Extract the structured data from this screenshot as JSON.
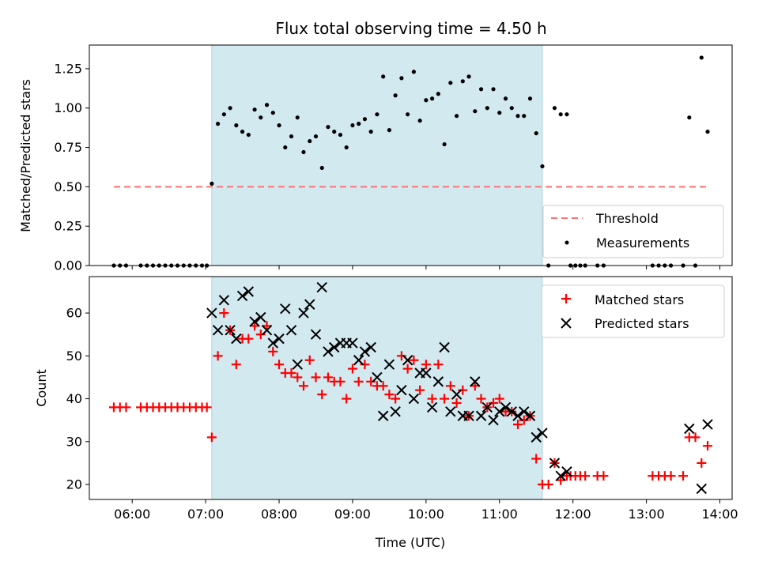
{
  "title": "Flux total observing time = 4.50 h",
  "xlabel": "Time (UTC)",
  "x_ticks": [
    "06:00",
    "07:00",
    "08:00",
    "09:00",
    "10:00",
    "11:00",
    "12:00",
    "13:00",
    "14:00"
  ],
  "colors": {
    "threshold": "#ff7070",
    "measurement": "#000000",
    "matched": "#ff0000",
    "predicted": "#000000",
    "shade": "#d3e9f0",
    "shade_edge": "#a9d3df"
  },
  "chart_data": [
    {
      "type": "scatter",
      "name": "top",
      "ylabel": "Matched/Predicted stars",
      "ylim": [
        0,
        1.4
      ],
      "y_ticks": [
        "0.00",
        "0.25",
        "0.50",
        "0.75",
        "1.00",
        "1.25"
      ],
      "x_range": [
        "05:25",
        "14:10"
      ],
      "shaded_interval": [
        "07:05",
        "11:35"
      ],
      "threshold": {
        "name": "Threshold",
        "y": 0.5,
        "x": [
          "05:45",
          "13:50"
        ]
      },
      "legend": {
        "position": "lower right",
        "entries": [
          "Threshold",
          "Measurements"
        ]
      },
      "series": [
        {
          "name": "Measurements",
          "marker": "dot",
          "points": [
            [
              "05:45",
              0
            ],
            [
              "05:50",
              0
            ],
            [
              "05:55",
              0
            ],
            [
              "06:07",
              0
            ],
            [
              "06:12",
              0
            ],
            [
              "06:17",
              0
            ],
            [
              "06:22",
              0
            ],
            [
              "06:27",
              0
            ],
            [
              "06:32",
              0
            ],
            [
              "06:37",
              0
            ],
            [
              "06:42",
              0
            ],
            [
              "06:47",
              0
            ],
            [
              "06:52",
              0
            ],
            [
              "06:57",
              0
            ],
            [
              "07:01",
              0
            ],
            [
              "07:05",
              0.52
            ],
            [
              "07:10",
              0.9
            ],
            [
              "07:15",
              0.96
            ],
            [
              "07:20",
              1.0
            ],
            [
              "07:25",
              0.89
            ],
            [
              "07:30",
              0.85
            ],
            [
              "07:35",
              0.83
            ],
            [
              "07:40",
              0.99
            ],
            [
              "07:45",
              0.94
            ],
            [
              "07:50",
              1.02
            ],
            [
              "07:55",
              0.97
            ],
            [
              "08:00",
              0.89
            ],
            [
              "08:05",
              0.75
            ],
            [
              "08:10",
              0.82
            ],
            [
              "08:15",
              0.94
            ],
            [
              "08:20",
              0.72
            ],
            [
              "08:25",
              0.79
            ],
            [
              "08:30",
              0.82
            ],
            [
              "08:35",
              0.62
            ],
            [
              "08:40",
              0.88
            ],
            [
              "08:45",
              0.85
            ],
            [
              "08:50",
              0.83
            ],
            [
              "08:55",
              0.75
            ],
            [
              "09:00",
              0.89
            ],
            [
              "09:05",
              0.9
            ],
            [
              "09:10",
              0.93
            ],
            [
              "09:15",
              0.85
            ],
            [
              "09:20",
              0.96
            ],
            [
              "09:25",
              1.2
            ],
            [
              "09:30",
              0.86
            ],
            [
              "09:35",
              1.08
            ],
            [
              "09:40",
              1.19
            ],
            [
              "09:45",
              0.96
            ],
            [
              "09:50",
              1.23
            ],
            [
              "09:55",
              0.92
            ],
            [
              "10:00",
              1.05
            ],
            [
              "10:05",
              1.06
            ],
            [
              "10:10",
              1.09
            ],
            [
              "10:15",
              0.77
            ],
            [
              "10:20",
              1.16
            ],
            [
              "10:25",
              0.95
            ],
            [
              "10:30",
              1.17
            ],
            [
              "10:35",
              1.2
            ],
            [
              "10:40",
              0.98
            ],
            [
              "10:45",
              1.12
            ],
            [
              "10:50",
              1.0
            ],
            [
              "10:55",
              1.12
            ],
            [
              "11:00",
              0.97
            ],
            [
              "11:05",
              1.06
            ],
            [
              "11:10",
              1.0
            ],
            [
              "11:15",
              0.95
            ],
            [
              "11:20",
              0.95
            ],
            [
              "11:25",
              1.06
            ],
            [
              "11:30",
              0.84
            ],
            [
              "11:35",
              0.63
            ],
            [
              "11:40",
              0
            ],
            [
              "11:45",
              1.0
            ],
            [
              "11:50",
              0.96
            ],
            [
              "11:55",
              0.96
            ],
            [
              "11:58",
              0
            ],
            [
              "12:02",
              0
            ],
            [
              "12:06",
              0
            ],
            [
              "12:10",
              0
            ],
            [
              "12:20",
              0
            ],
            [
              "12:25",
              0
            ],
            [
              "13:05",
              0
            ],
            [
              "13:10",
              0
            ],
            [
              "13:15",
              0
            ],
            [
              "13:20",
              0
            ],
            [
              "13:30",
              0
            ],
            [
              "13:35",
              0.94
            ],
            [
              "13:40",
              0
            ],
            [
              "13:45",
              1.32
            ],
            [
              "13:50",
              0.85
            ]
          ]
        }
      ]
    },
    {
      "type": "scatter",
      "name": "bottom",
      "ylabel": "Count",
      "ylim": [
        16.5,
        68.5
      ],
      "y_ticks": [
        "20",
        "30",
        "40",
        "50",
        "60"
      ],
      "x_range": [
        "05:25",
        "14:10"
      ],
      "shaded_interval": [
        "07:05",
        "11:35"
      ],
      "legend": {
        "position": "upper right",
        "entries": [
          "Matched stars",
          "Predicted stars"
        ]
      },
      "series": [
        {
          "name": "Matched stars",
          "marker": "plus",
          "points": [
            [
              "05:45",
              38
            ],
            [
              "05:50",
              38
            ],
            [
              "05:55",
              38
            ],
            [
              "06:07",
              38
            ],
            [
              "06:12",
              38
            ],
            [
              "06:17",
              38
            ],
            [
              "06:22",
              38
            ],
            [
              "06:27",
              38
            ],
            [
              "06:32",
              38
            ],
            [
              "06:37",
              38
            ],
            [
              "06:42",
              38
            ],
            [
              "06:47",
              38
            ],
            [
              "06:52",
              38
            ],
            [
              "06:57",
              38
            ],
            [
              "07:01",
              38
            ],
            [
              "07:05",
              31
            ],
            [
              "07:10",
              50
            ],
            [
              "07:15",
              60
            ],
            [
              "07:20",
              56
            ],
            [
              "07:25",
              48
            ],
            [
              "07:30",
              54
            ],
            [
              "07:35",
              54
            ],
            [
              "07:40",
              57
            ],
            [
              "07:45",
              55
            ],
            [
              "07:50",
              57
            ],
            [
              "07:55",
              51
            ],
            [
              "08:00",
              48
            ],
            [
              "08:05",
              46
            ],
            [
              "08:10",
              46
            ],
            [
              "08:15",
              45
            ],
            [
              "08:20",
              43
            ],
            [
              "08:25",
              49
            ],
            [
              "08:30",
              45
            ],
            [
              "08:35",
              41
            ],
            [
              "08:40",
              45
            ],
            [
              "08:45",
              44
            ],
            [
              "08:50",
              44
            ],
            [
              "08:55",
              40
            ],
            [
              "09:00",
              47
            ],
            [
              "09:05",
              44
            ],
            [
              "09:10",
              48
            ],
            [
              "09:15",
              44
            ],
            [
              "09:20",
              43
            ],
            [
              "09:25",
              43
            ],
            [
              "09:30",
              41
            ],
            [
              "09:35",
              40
            ],
            [
              "09:40",
              50
            ],
            [
              "09:45",
              47
            ],
            [
              "09:50",
              49
            ],
            [
              "09:55",
              42
            ],
            [
              "10:00",
              48
            ],
            [
              "10:05",
              40
            ],
            [
              "10:10",
              48
            ],
            [
              "10:15",
              40
            ],
            [
              "10:20",
              43
            ],
            [
              "10:25",
              39
            ],
            [
              "10:30",
              42
            ],
            [
              "10:35",
              36
            ],
            [
              "10:40",
              43
            ],
            [
              "10:45",
              40
            ],
            [
              "10:50",
              38
            ],
            [
              "10:55",
              39
            ],
            [
              "11:00",
              40
            ],
            [
              "11:05",
              37
            ],
            [
              "11:10",
              37
            ],
            [
              "11:15",
              34
            ],
            [
              "11:20",
              35
            ],
            [
              "11:25",
              36
            ],
            [
              "11:30",
              26
            ],
            [
              "11:35",
              20
            ],
            [
              "11:40",
              20
            ],
            [
              "11:45",
              25
            ],
            [
              "11:50",
              21
            ],
            [
              "11:55",
              22
            ],
            [
              "11:58",
              22
            ],
            [
              "12:02",
              22
            ],
            [
              "12:06",
              22
            ],
            [
              "12:10",
              22
            ],
            [
              "12:20",
              22
            ],
            [
              "12:25",
              22
            ],
            [
              "13:05",
              22
            ],
            [
              "13:10",
              22
            ],
            [
              "13:15",
              22
            ],
            [
              "13:20",
              22
            ],
            [
              "13:30",
              22
            ],
            [
              "13:35",
              31
            ],
            [
              "13:40",
              31
            ],
            [
              "13:45",
              25
            ],
            [
              "13:50",
              29
            ]
          ]
        },
        {
          "name": "Predicted stars",
          "marker": "x",
          "points": [
            [
              "07:05",
              60
            ],
            [
              "07:10",
              56
            ],
            [
              "07:15",
              63
            ],
            [
              "07:20",
              56
            ],
            [
              "07:25",
              54
            ],
            [
              "07:30",
              64
            ],
            [
              "07:35",
              65
            ],
            [
              "07:40",
              58
            ],
            [
              "07:45",
              59
            ],
            [
              "07:50",
              56
            ],
            [
              "07:55",
              53
            ],
            [
              "08:00",
              54
            ],
            [
              "08:05",
              61
            ],
            [
              "08:10",
              56
            ],
            [
              "08:15",
              48
            ],
            [
              "08:20",
              60
            ],
            [
              "08:25",
              62
            ],
            [
              "08:30",
              55
            ],
            [
              "08:35",
              66
            ],
            [
              "08:40",
              51
            ],
            [
              "08:45",
              52
            ],
            [
              "08:50",
              53
            ],
            [
              "08:55",
              53
            ],
            [
              "09:00",
              53
            ],
            [
              "09:05",
              49
            ],
            [
              "09:10",
              51
            ],
            [
              "09:15",
              52
            ],
            [
              "09:20",
              45
            ],
            [
              "09:25",
              36
            ],
            [
              "09:30",
              48
            ],
            [
              "09:35",
              37
            ],
            [
              "09:40",
              42
            ],
            [
              "09:45",
              49
            ],
            [
              "09:50",
              40
            ],
            [
              "09:55",
              46
            ],
            [
              "10:00",
              46
            ],
            [
              "10:05",
              38
            ],
            [
              "10:10",
              44
            ],
            [
              "10:15",
              52
            ],
            [
              "10:20",
              37
            ],
            [
              "10:25",
              41
            ],
            [
              "10:30",
              36
            ],
            [
              "10:35",
              36
            ],
            [
              "10:40",
              44
            ],
            [
              "10:45",
              36
            ],
            [
              "10:50",
              38
            ],
            [
              "10:55",
              35
            ],
            [
              "11:00",
              37
            ],
            [
              "11:05",
              38
            ],
            [
              "11:10",
              37
            ],
            [
              "11:15",
              36
            ],
            [
              "11:20",
              37
            ],
            [
              "11:25",
              36
            ],
            [
              "11:30",
              31
            ],
            [
              "11:35",
              32
            ],
            [
              "11:45",
              25
            ],
            [
              "11:50",
              22
            ],
            [
              "11:55",
              23
            ],
            [
              "13:35",
              33
            ],
            [
              "13:45",
              19
            ],
            [
              "13:50",
              34
            ]
          ]
        }
      ]
    }
  ]
}
